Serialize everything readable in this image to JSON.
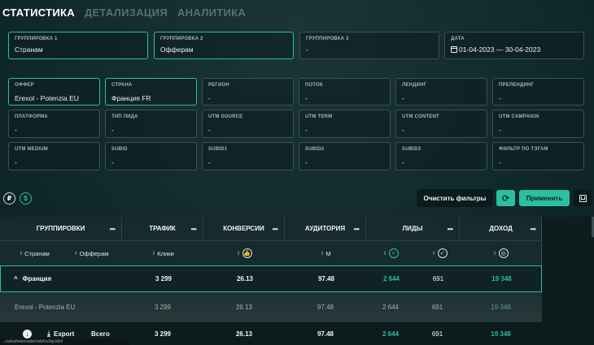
{
  "tabs": [
    "СТАТИСТИКА",
    "ДЕТАЛИЗАЦИЯ",
    "АНАЛИТИКА"
  ],
  "groups": [
    {
      "label": "ГРУППИРОВКА 1",
      "value": "Странам"
    },
    {
      "label": "ГРУППИРОВКА 2",
      "value": "Офферам"
    },
    {
      "label": "ГРУППИРОВКА 3",
      "value": "-"
    }
  ],
  "date": {
    "label": "ДАТА",
    "value": "01-04-2023 — 30-04-2023"
  },
  "filters": [
    {
      "label": "ОФФЕР",
      "value": "Erexol - Potenzia EU"
    },
    {
      "label": "СТРАНА",
      "value": "Франция FR"
    },
    {
      "label": "РЕГИОН",
      "value": "-"
    },
    {
      "label": "ПОТОК",
      "value": "-"
    },
    {
      "label": "ЛЕНДИНГ",
      "value": "-"
    },
    {
      "label": "ПРЕЛЕНДИНГ",
      "value": "-"
    },
    {
      "label": "ПЛАТФОРМА",
      "value": "-"
    },
    {
      "label": "ТИП ЛИДА",
      "value": "-"
    },
    {
      "label": "UTM SOURCE",
      "value": "-"
    },
    {
      "label": "UTM TERM",
      "value": "-"
    },
    {
      "label": "UTM CONTENT",
      "value": "-"
    },
    {
      "label": "UTM CAMPAIGN",
      "value": "-"
    },
    {
      "label": "UTM MEDIUM",
      "value": "-"
    },
    {
      "label": "SUBID",
      "value": "-"
    },
    {
      "label": "SUBID1",
      "value": "-"
    },
    {
      "label": "SUBID2",
      "value": "-"
    },
    {
      "label": "SUBID3",
      "value": "-"
    },
    {
      "label": "ФИЛЬТР ПО ТЭГАМ",
      "value": "-"
    }
  ],
  "currency": {
    "rub": "₽",
    "usd": "$"
  },
  "buttons": {
    "clear": "Очистить фильтры",
    "apply": "Применить"
  },
  "table": {
    "headers": [
      "ГРУППИРОВКИ",
      "ТРАФИК",
      "КОНВЕРСИИ",
      "АУДИТОРИЯ",
      "ЛИДЫ",
      "ДОХОД"
    ],
    "dots": "•••",
    "sub": {
      "g1": "Странам",
      "g2": "Офферам",
      "traffic": "Клики",
      "audience": "М"
    },
    "country": {
      "name": "Франция",
      "traffic": "3 299",
      "conv": "26.13",
      "aud": "97.48",
      "leads": "2 644",
      "approved": "691",
      "income": "19 348"
    },
    "offer": {
      "name": "Erexol - Potenzia EU",
      "traffic": "3 299",
      "conv": "26.13",
      "aud": "97.48",
      "leads": "2 644",
      "approved": "691",
      "income": "19 348"
    },
    "total": {
      "export": "Export",
      "label": "Всего",
      "traffic": "3 299",
      "conv": "26.13",
      "aud": "97.48",
      "leads": "2 644",
      "approved": "691",
      "income": "19 348"
    }
  },
  "statusbar": "...nalinahwbmaster/wb/inc/taj.html"
}
